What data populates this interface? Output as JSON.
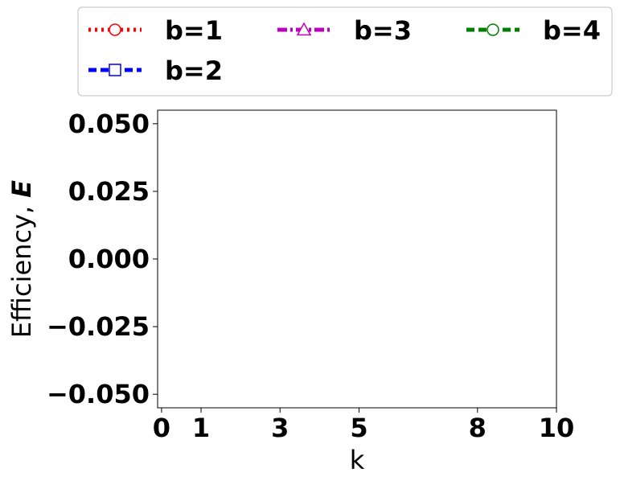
{
  "chart_data": {
    "type": "line",
    "xlabel": "k",
    "ylabel_text": "Efficiency,",
    "ylabel_symbol": "E",
    "xlim": [
      -0.1,
      10.0
    ],
    "ylim": [
      -0.055,
      0.055
    ],
    "x_ticks": [
      0,
      1,
      3,
      5,
      8,
      10
    ],
    "x_tick_labels": [
      "0",
      "1",
      "3",
      "5",
      "8",
      "10"
    ],
    "y_ticks": [
      0.05,
      0.025,
      0.0,
      -0.025,
      -0.05
    ],
    "y_tick_labels": [
      "0.050",
      "0.025",
      "0.000",
      "−0.025",
      "−0.050"
    ],
    "legend_position": "top, outside plot, 3 columns",
    "series": [
      {
        "name": "b=1",
        "color": "#ff0000",
        "line_style": "dotted",
        "marker": "circle",
        "x": [],
        "y": []
      },
      {
        "name": "b=2",
        "color": "#0000ff",
        "line_style": "dashed",
        "marker": "square",
        "x": [],
        "y": []
      },
      {
        "name": "b=3",
        "color": "#bf00bf",
        "line_style": "dashdot",
        "marker": "triangle",
        "x": [],
        "y": []
      },
      {
        "name": "b=4",
        "color": "#008000",
        "line_style": "dashed",
        "marker": "circle",
        "x": [],
        "y": []
      }
    ]
  }
}
